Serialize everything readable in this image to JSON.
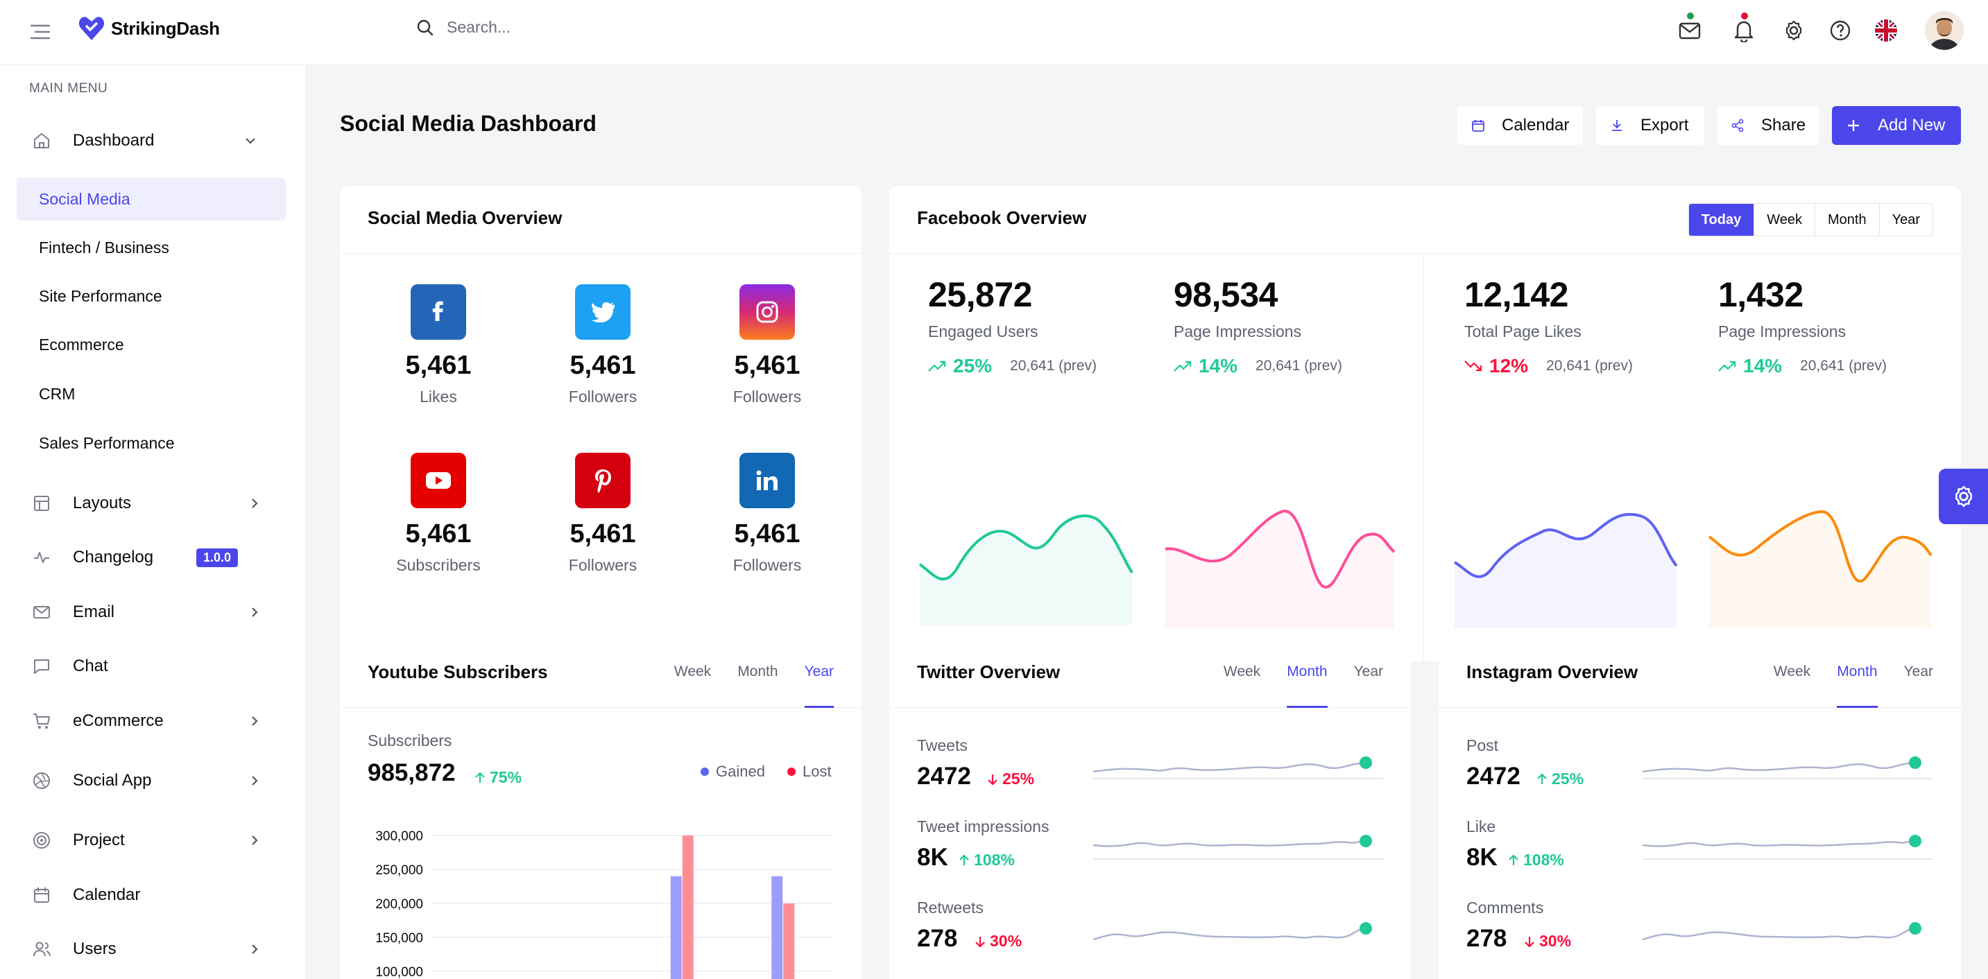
{
  "brand": {
    "name": "StrikingDash"
  },
  "search": {
    "placeholder": "Search..."
  },
  "sidebar": {
    "menu_heading": "MAIN MENU",
    "dashboard": "Dashboard",
    "sub_items": [
      "Social Media",
      "Fintech / Business",
      "Site Performance",
      "Ecommerce",
      "CRM",
      "Sales Performance"
    ],
    "items": [
      "Layouts",
      "Changelog",
      "Email",
      "Chat",
      "eCommerce",
      "Social App",
      "Project",
      "Calendar",
      "Users"
    ],
    "changelog_badge": "1.0.0"
  },
  "header": {
    "title": "Social Media Dashboard",
    "calendar": "Calendar",
    "export": "Export",
    "share": "Share",
    "add_new": "Add New"
  },
  "overview": {
    "title": "Social Media Overview",
    "items": [
      {
        "icon": "facebook-icon",
        "value": "5,461",
        "label": "Likes",
        "color": "#2366B8"
      },
      {
        "icon": "twitter-icon",
        "value": "5,461",
        "label": "Followers",
        "color": "#1DA1F2"
      },
      {
        "icon": "instagram-icon",
        "value": "5,461",
        "label": "Followers",
        "color": "#C13584"
      },
      {
        "icon": "youtube-icon",
        "value": "5,461",
        "label": "Subscribers",
        "color": "#E50000"
      },
      {
        "icon": "pinterest-icon",
        "value": "5,461",
        "label": "Followers",
        "color": "#D4000F"
      },
      {
        "icon": "linkedin-icon",
        "value": "5,461",
        "label": "Followers",
        "color": "#1268B3"
      }
    ]
  },
  "facebook": {
    "title": "Facebook Overview",
    "periods": [
      "Today",
      "Week",
      "Month",
      "Year"
    ],
    "stats": [
      {
        "value": "25,872",
        "label": "Engaged Users",
        "pct": "25%",
        "prev": "20,641 (prev)",
        "trend": "up",
        "color": "#20C997"
      },
      {
        "value": "98,534",
        "label": "Page Impressions",
        "pct": "14%",
        "prev": "20,641 (prev)",
        "trend": "up",
        "color": "#FF4D9A"
      },
      {
        "value": "12,142",
        "label": "Total Page Likes",
        "pct": "12%",
        "prev": "20,641 (prev)",
        "trend": "down",
        "color": "#5F63F2"
      },
      {
        "value": "1,432",
        "label": "Page Impressions",
        "pct": "14%",
        "prev": "20,641 (prev)",
        "trend": "up",
        "color": "#FA8B0C"
      }
    ]
  },
  "youtube": {
    "title": "Youtube Subscribers",
    "tabs": [
      "Week",
      "Month",
      "Year"
    ],
    "subscribers_label": "Subscribers",
    "subscribers": "985,872",
    "pct": "75%",
    "legend": [
      "Gained",
      "Lost"
    ]
  },
  "twitter": {
    "title": "Twitter Overview",
    "tabs": [
      "Week",
      "Month",
      "Year"
    ],
    "rows": [
      {
        "label": "Tweets",
        "value": "2472",
        "pct": "25%",
        "trend": "down"
      },
      {
        "label": "Tweet impressions",
        "value": "8K",
        "pct": "108%",
        "trend": "up"
      },
      {
        "label": "Retweets",
        "value": "278",
        "pct": "30%",
        "trend": "down"
      }
    ]
  },
  "instagram": {
    "title": "Instagram Overview",
    "tabs": [
      "Week",
      "Month",
      "Year"
    ],
    "rows": [
      {
        "label": "Post",
        "value": "2472",
        "pct": "25%",
        "trend": "up"
      },
      {
        "label": "Like",
        "value": "8K",
        "pct": "108%",
        "trend": "up"
      },
      {
        "label": "Comments",
        "value": "278",
        "pct": "30%",
        "trend": "down"
      }
    ]
  },
  "chart_data": {
    "type": "bar",
    "title": "",
    "categories": [
      "",
      "",
      "",
      "",
      "",
      "",
      "",
      "",
      "",
      "",
      "",
      ""
    ],
    "series": [
      {
        "name": "Gained",
        "values": [
          null,
          null,
          null,
          null,
          null,
          null,
          null,
          240000,
          null,
          null,
          240000,
          null
        ]
      },
      {
        "name": "Lost",
        "values": [
          null,
          null,
          null,
          null,
          null,
          null,
          null,
          300000,
          null,
          null,
          200000,
          null
        ]
      }
    ],
    "yticks": [
      "300,000",
      "250,000",
      "200,000",
      "150,000",
      "100,000"
    ],
    "ylim": [
      100000,
      300000
    ],
    "colors": [
      "#9C9CFF",
      "#FF8E93"
    ]
  }
}
